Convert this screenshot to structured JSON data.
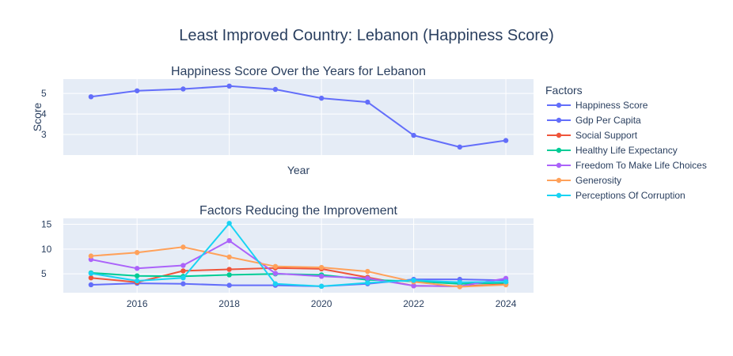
{
  "title": "Least Improved Country: Lebanon (Happiness Score)",
  "legend": {
    "title": "Factors"
  },
  "colors": {
    "plot_bg": "#e5ecf6",
    "grid": "#ffffff",
    "text": "#2a3f5f"
  },
  "chart_data": [
    {
      "type": "line",
      "title": "Happiness Score Over the Years for Lebanon",
      "xlabel": "Year",
      "ylabel": "Score",
      "xlim": [
        2014.4,
        2024.6
      ],
      "ylim": [
        2.0,
        5.7
      ],
      "yticks": [
        3,
        4,
        5
      ],
      "xticks": [
        2016,
        2018,
        2020,
        2022,
        2024
      ],
      "show_x_tick_labels": false,
      "grid": true,
      "x": [
        2015,
        2016,
        2017,
        2018,
        2019,
        2020,
        2021,
        2022,
        2023,
        2024
      ],
      "series": [
        {
          "name": "Happiness Score",
          "color": "#636efa",
          "values": [
            4.84,
            5.13,
            5.22,
            5.36,
            5.2,
            4.77,
            4.58,
            2.96,
            2.39,
            2.71
          ]
        }
      ]
    },
    {
      "type": "line",
      "title": "Factors Reducing the Improvement",
      "xlabel": "",
      "ylabel": "",
      "xlim": [
        2014.4,
        2024.6
      ],
      "ylim": [
        1.2,
        16.2
      ],
      "yticks": [
        5,
        10,
        15
      ],
      "xticks": [
        2016,
        2018,
        2020,
        2022,
        2024
      ],
      "show_x_tick_labels": true,
      "grid": true,
      "x": [
        2015,
        2016,
        2017,
        2018,
        2019,
        2020,
        2021,
        2022,
        2023,
        2024
      ],
      "series": [
        {
          "name": "Gdp Per Capita",
          "color": "#636efa",
          "values": [
            2.8,
            3.1,
            3.0,
            2.7,
            2.7,
            2.5,
            3.0,
            3.9,
            3.9,
            3.7
          ]
        },
        {
          "name": "Social Support",
          "color": "#ef553b",
          "values": [
            4.2,
            3.3,
            5.6,
            5.9,
            6.2,
            6.0,
            4.3,
            2.6,
            2.5,
            2.9
          ]
        },
        {
          "name": "Healthy Life Expectancy",
          "color": "#00cc96",
          "values": [
            5.2,
            4.6,
            4.5,
            4.8,
            5.0,
            4.8,
            3.8,
            3.5,
            3.0,
            3.2
          ]
        },
        {
          "name": "Freedom To Make Life Choices",
          "color": "#ab63fa",
          "values": [
            7.9,
            6.1,
            6.7,
            11.7,
            5.1,
            4.5,
            4.1,
            2.6,
            2.5,
            4.1
          ]
        },
        {
          "name": "Generosity",
          "color": "#ffa15a",
          "values": [
            8.6,
            9.3,
            10.4,
            8.4,
            6.5,
            6.3,
            5.5,
            3.4,
            2.4,
            2.8
          ]
        },
        {
          "name": "Perceptions Of Corruption",
          "color": "#19d3f3",
          "values": [
            5.1,
            3.6,
            4.2,
            15.2,
            3.0,
            2.5,
            3.2,
            3.7,
            3.3,
            3.4
          ]
        }
      ]
    }
  ]
}
